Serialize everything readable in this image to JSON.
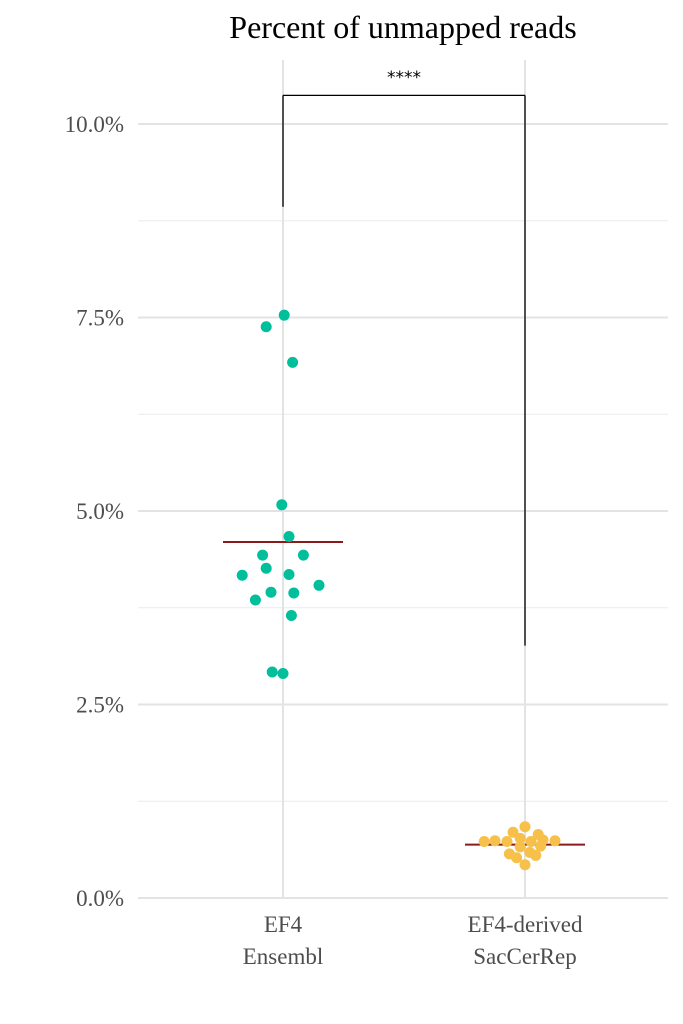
{
  "chart_data": {
    "type": "scatter",
    "title": "Percent of unmapped reads",
    "xlabel": "",
    "ylabel": "",
    "ylim": [
      0,
      10.8
    ],
    "y_ticks": [
      0,
      2.5,
      5,
      7.5,
      10
    ],
    "y_tick_labels": [
      "0.0%",
      "2.5%",
      "5.0%",
      "7.5%",
      "10.0%"
    ],
    "y_minor_gridlines": [
      1.25,
      3.75,
      6.25,
      8.75
    ],
    "grid": true,
    "legend": "none",
    "categories": [
      {
        "label_line1": "EF4",
        "label_line2": "Ensembl"
      },
      {
        "label_line1": "EF4-derived",
        "label_line2": "SacCerRep"
      }
    ],
    "series": [
      {
        "category_index": 0,
        "color": "#00bf9a",
        "mean": 4.6,
        "points": [
          {
            "x": -0.14,
            "y": 7.38
          },
          {
            "x": 0.01,
            "y": 7.53
          },
          {
            "x": 0.08,
            "y": 6.92
          },
          {
            "x": -0.01,
            "y": 5.08
          },
          {
            "x": 0.05,
            "y": 4.67
          },
          {
            "x": -0.17,
            "y": 4.43
          },
          {
            "x": 0.17,
            "y": 4.43
          },
          {
            "x": -0.14,
            "y": 4.26
          },
          {
            "x": -0.34,
            "y": 4.17
          },
          {
            "x": 0.05,
            "y": 4.18
          },
          {
            "x": 0.3,
            "y": 4.04
          },
          {
            "x": -0.1,
            "y": 3.95
          },
          {
            "x": 0.09,
            "y": 3.94
          },
          {
            "x": -0.23,
            "y": 3.85
          },
          {
            "x": 0.07,
            "y": 3.65
          },
          {
            "x": -0.09,
            "y": 2.92
          },
          {
            "x": 0.0,
            "y": 2.9
          }
        ]
      },
      {
        "category_index": 1,
        "color": "#f7c04a",
        "mean": 0.69,
        "points": [
          {
            "x": 0.0,
            "y": 0.92
          },
          {
            "x": -0.1,
            "y": 0.85
          },
          {
            "x": 0.11,
            "y": 0.82
          },
          {
            "x": -0.04,
            "y": 0.77
          },
          {
            "x": -0.34,
            "y": 0.73
          },
          {
            "x": -0.25,
            "y": 0.74
          },
          {
            "x": -0.15,
            "y": 0.73
          },
          {
            "x": 0.05,
            "y": 0.73
          },
          {
            "x": 0.15,
            "y": 0.75
          },
          {
            "x": 0.25,
            "y": 0.74
          },
          {
            "x": 0.13,
            "y": 0.67
          },
          {
            "x": -0.04,
            "y": 0.66
          },
          {
            "x": 0.04,
            "y": 0.59
          },
          {
            "x": -0.13,
            "y": 0.57
          },
          {
            "x": 0.09,
            "y": 0.55
          },
          {
            "x": -0.07,
            "y": 0.52
          },
          {
            "x": 0.0,
            "y": 0.43
          }
        ]
      }
    ],
    "mean_line_color": "#8b1a1a",
    "significance": {
      "label": "****",
      "y_bracket": 10.37,
      "left_bottom_y": 8.93,
      "right_bottom_y": 3.26
    }
  }
}
